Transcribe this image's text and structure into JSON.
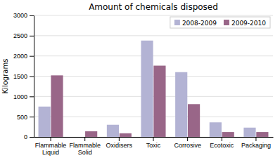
{
  "chart_data": {
    "type": "bar",
    "title": "Amount of chemicals disposed",
    "ylabel": "Kilograms",
    "categories": [
      "Flammable\nLiquid",
      "Flammable\nSolid",
      "Oxidisers",
      "Toxic",
      "Corrosive",
      "Ecotoxic",
      "Packaging"
    ],
    "series": [
      {
        "name": "2008-2009",
        "color": "#b3b3d4",
        "values": [
          750,
          0,
          300,
          2380,
          1600,
          360,
          230
        ]
      },
      {
        "name": "2009-2010",
        "color": "#996688",
        "values": [
          1520,
          140,
          90,
          1760,
          810,
          120,
          120
        ]
      }
    ],
    "ylim": [
      0,
      3000
    ],
    "yticks": [
      0,
      500,
      1000,
      1500,
      2000,
      2500,
      3000
    ],
    "grid": true,
    "legend": "upper right"
  }
}
